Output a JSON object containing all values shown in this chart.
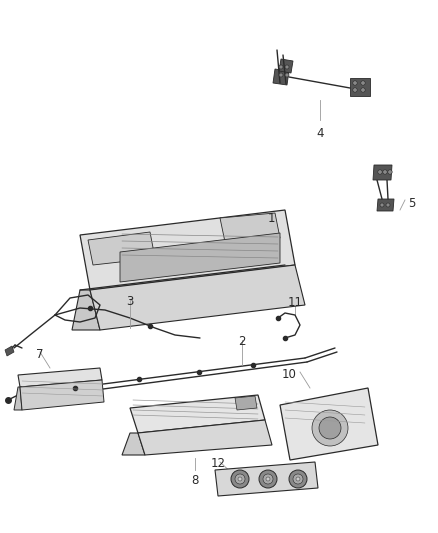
{
  "background_color": "#ffffff",
  "fig_width": 4.38,
  "fig_height": 5.33,
  "dpi": 100,
  "line_color": "#2a2a2a",
  "text_color": "#2a2a2a",
  "font_size": 8.5,
  "label_line_color": "#999999"
}
